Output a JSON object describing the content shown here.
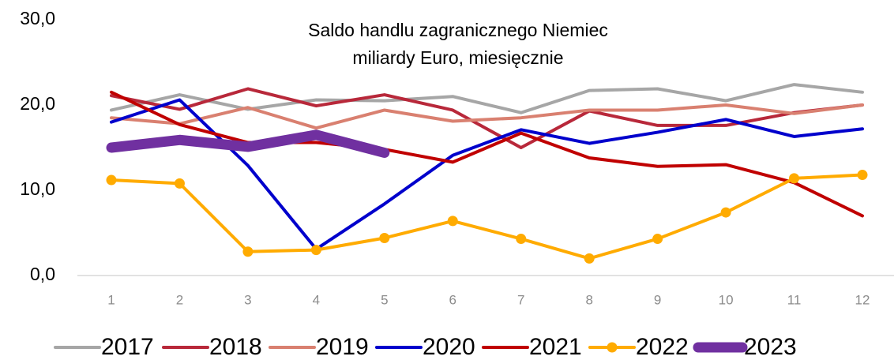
{
  "chart_data": {
    "type": "line",
    "title": [
      "Saldo handlu zagranicznego  Niemiec",
      "miliardy Euro, miesięcznie"
    ],
    "categories": [
      "1",
      "2",
      "3",
      "4",
      "5",
      "6",
      "7",
      "8",
      "9",
      "10",
      "11",
      "12"
    ],
    "series": [
      {
        "name": "2017",
        "color": "#a6a6a6",
        "width": 4,
        "markers": false,
        "values": [
          19.4,
          21.2,
          19.5,
          20.6,
          20.5,
          21.0,
          19.1,
          21.7,
          21.9,
          20.5,
          22.4,
          21.5
        ]
      },
      {
        "name": "2018",
        "color": "#b8283a",
        "width": 4,
        "markers": false,
        "values": [
          21.1,
          19.5,
          21.9,
          19.9,
          21.2,
          19.4,
          15.0,
          19.3,
          17.6,
          17.6,
          19.1,
          20.0
        ]
      },
      {
        "name": "2019",
        "color": "#d98070",
        "width": 4,
        "markers": false,
        "values": [
          18.5,
          17.8,
          19.7,
          17.3,
          19.4,
          18.1,
          18.5,
          19.4,
          19.4,
          20.0,
          19.0,
          20.0
        ]
      },
      {
        "name": "2020",
        "color": "#0000cc",
        "width": 4,
        "markers": false,
        "values": [
          18.0,
          20.6,
          12.9,
          3.1,
          8.4,
          14.1,
          17.1,
          15.5,
          16.8,
          18.3,
          16.3,
          17.2
        ]
      },
      {
        "name": "2021",
        "color": "#c00000",
        "width": 4,
        "markers": false,
        "values": [
          21.5,
          17.7,
          15.6,
          15.6,
          14.8,
          13.3,
          16.7,
          13.8,
          12.8,
          13.0,
          10.9,
          7.0
        ]
      },
      {
        "name": "2022",
        "color": "#ffab00",
        "width": 4,
        "markers": true,
        "values": [
          11.2,
          10.8,
          2.8,
          3.0,
          4.4,
          6.4,
          4.3,
          2.0,
          4.3,
          7.4,
          11.4,
          11.8
        ]
      },
      {
        "name": "2023",
        "color": "#7030a0",
        "width": 13,
        "markers": false,
        "values": [
          15.0,
          15.9,
          15.1,
          16.5,
          14.4,
          null,
          null,
          null,
          null,
          null,
          null,
          null
        ]
      }
    ],
    "ylim": [
      0,
      30
    ],
    "yticks": [
      {
        "value": 0,
        "label": "0,0"
      },
      {
        "value": 10,
        "label": "10,0"
      },
      {
        "value": 20,
        "label": "20,0"
      },
      {
        "value": 30,
        "label": "30,0"
      }
    ],
    "grid": false,
    "legend": "bottom"
  }
}
